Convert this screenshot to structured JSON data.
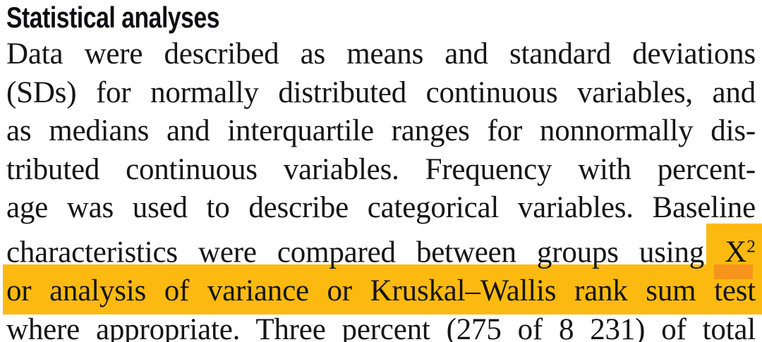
{
  "doc": {
    "heading": "Statistical analyses",
    "lines": [
      {
        "text": "Data were described as means and standard deviations"
      },
      {
        "text": "(SDs) for normally distributed continuous variables, and"
      },
      {
        "text": "as medians and interquartile ranges for nonnormally dis-"
      },
      {
        "text": "tributed continuous variables. Frequency with percent-"
      },
      {
        "text": "age was used to describe categorical variables. Baseline"
      },
      {
        "text": "characteristics were compared between groups using",
        "highlight": {
          "base": "X",
          "sup": "2"
        }
      },
      {
        "text": "or analysis of variance or Kruskal–Wallis rank sum test",
        "highlighted": true
      },
      {
        "text": "where appropriate. Three percent (275 of 8 231) of total"
      }
    ],
    "colors": {
      "highlight": "#fcba10",
      "highlight_overlap": "#f7941d",
      "text": "#151515",
      "heading_text": "#0d0d12"
    }
  }
}
